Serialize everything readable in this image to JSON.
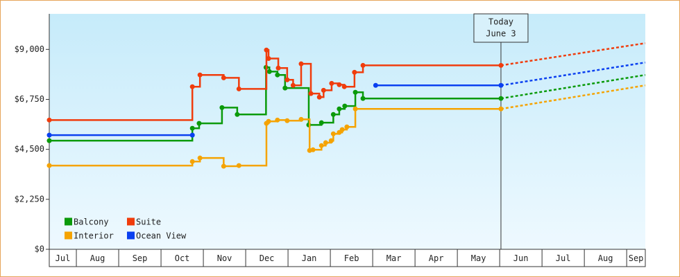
{
  "chart_data": {
    "type": "step-line",
    "months": [
      "Jul",
      "Aug",
      "Sep",
      "Oct",
      "Nov",
      "Dec",
      "Jan",
      "Feb",
      "Mar",
      "Apr",
      "May",
      "Jun",
      "Jul",
      "Aug",
      "Sep"
    ],
    "xlim": [
      0.36,
      14.44
    ],
    "ylim": [
      0,
      10600
    ],
    "yticks": [
      {
        "value": 0,
        "label": "$0"
      },
      {
        "value": 2250,
        "label": "$2,250"
      },
      {
        "value": 4500,
        "label": "$4,500"
      },
      {
        "value": 6750,
        "label": "$6,750"
      },
      {
        "value": 9000,
        "label": "$9,000"
      }
    ],
    "today_x": 11.03,
    "today_label": [
      "Today",
      "June 3"
    ],
    "forecast_x": [
      11.03,
      14.44
    ],
    "series": [
      {
        "name": "Balcony",
        "color": "#0a9a0a",
        "x": [
          0.36,
          3.74,
          3.9,
          4.44,
          4.8,
          5.48,
          5.56,
          5.75,
          5.93,
          6.49,
          6.79,
          7.07,
          7.21,
          7.34,
          7.59,
          7.77,
          11.03
        ],
        "values": [
          4890,
          5450,
          5670,
          6380,
          6070,
          8190,
          8000,
          7850,
          7260,
          5600,
          5700,
          6070,
          6320,
          6450,
          7070,
          6790,
          6790
        ],
        "forecast": [
          6790,
          7850
        ]
      },
      {
        "name": "Suite",
        "color": "#f03c0c",
        "x": [
          0.36,
          3.74,
          3.92,
          4.48,
          4.84,
          5.49,
          5.54,
          5.77,
          5.98,
          6.12,
          6.31,
          6.54,
          6.74,
          6.84,
          7.03,
          7.21,
          7.33,
          7.57,
          7.77,
          11.03
        ],
        "values": [
          5820,
          7320,
          7850,
          7720,
          7220,
          8970,
          8590,
          8160,
          7630,
          7380,
          8350,
          7010,
          6850,
          7160,
          7470,
          7410,
          7320,
          7970,
          8280,
          8280
        ],
        "forecast": [
          8280,
          9280
        ]
      },
      {
        "name": "Interior",
        "color": "#f5a300",
        "x": [
          0.36,
          3.74,
          3.92,
          4.48,
          4.84,
          5.49,
          5.54,
          5.75,
          5.98,
          6.31,
          6.51,
          6.59,
          6.79,
          6.89,
          7.02,
          7.07,
          7.21,
          7.28,
          7.39,
          7.59,
          11.03
        ],
        "values": [
          3770,
          3950,
          4110,
          3740,
          3770,
          5670,
          5760,
          5820,
          5790,
          5850,
          4450,
          4480,
          4670,
          4800,
          4890,
          5200,
          5260,
          5390,
          5510,
          6320,
          6320
        ],
        "forecast": [
          6320,
          7380
        ]
      },
      {
        "name": "Ocean View",
        "color": "#0a40f0",
        "x": [
          0.36,
          3.74,
          null,
          8.07,
          11.03
        ],
        "values": [
          5140,
          5140,
          null,
          7380,
          7380
        ],
        "forecast": [
          7380,
          8410
        ]
      }
    ]
  }
}
